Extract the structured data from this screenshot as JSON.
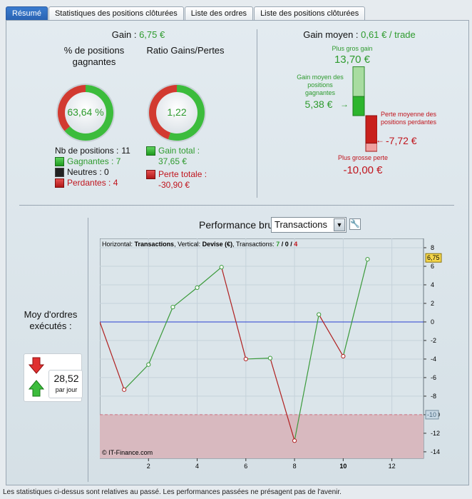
{
  "tabs": [
    {
      "label": "Résumé",
      "active": true
    },
    {
      "label": "Statistiques des positions clôturées",
      "active": false
    },
    {
      "label": "Liste des ordres",
      "active": false
    },
    {
      "label": "Liste des positions clôturées",
      "active": false
    }
  ],
  "summary": {
    "gain_label": "Gain :",
    "gain_value": "6,75 €",
    "winning_title": "% de positions gagnantes",
    "winning_pct_text": "63,64 %",
    "winning_fraction": 0.6364,
    "ratio_title": "Ratio Gains/Pertes",
    "ratio_text": "1,22",
    "ratio_gain_fraction": 0.55,
    "nb_positions_label": "Nb de positions :",
    "nb_positions_value": "11",
    "gagnantes_label": "Gagnantes : 7",
    "neutres_label": "Neutres : 0",
    "perdantes_label": "Perdantes : 4",
    "gain_total_label": "Gain total :",
    "gain_total_value": "37,65 €",
    "perte_totale_label": "Perte totale :",
    "perte_totale_value": "-30,90 €"
  },
  "gain_moyen": {
    "label": "Gain moyen :",
    "value": "0,61 € / trade",
    "plus_gros_gain_label": "Plus gros gain",
    "plus_gros_gain_value": "13,70 €",
    "gain_moyen_positions_label": "Gain moyen des positions gagnantes",
    "gain_moyen_positions_value": "5,38 €",
    "perte_moyenne_label": "Perte moyenne des positions perdantes",
    "perte_moyenne_value": "-7,72 €",
    "plus_grosse_perte_label": "Plus grosse perte",
    "plus_grosse_perte_value": "-10,00 €",
    "max_gain": 13.7,
    "avg_gain": 5.38,
    "avg_loss": -7.72,
    "max_loss": -10.0
  },
  "orders": {
    "title": "Moy d'ordres exécutés :",
    "value": "28,52",
    "unit": "par jour"
  },
  "performance": {
    "title": "Performance brute",
    "dropdown_value": "Transactions",
    "info_prefix": "Horizontal:",
    "info_h": "Transactions",
    "info_mid": ", Vertical:",
    "info_v": "Devise (€)",
    "info_tx": ", Transactions:",
    "info_win": "7",
    "info_sep1": " / ",
    "info_neutral": "0",
    "info_sep2": " / ",
    "info_loss": "4",
    "watermark": "© IT-Finance.com",
    "last_value_label": "6,75",
    "limit_label": "-10"
  },
  "footer": "Les statistiques ci-dessus sont relatives au passé. Les performances passées ne présagent pas de l'avenir.",
  "chart_data": {
    "type": "line",
    "x": [
      0,
      1,
      2,
      3,
      4,
      5,
      6,
      7,
      8,
      9,
      10,
      11
    ],
    "y": [
      0,
      -7.3,
      -4.6,
      1.6,
      3.7,
      5.9,
      -4.0,
      -3.9,
      -12.8,
      0.8,
      -3.7,
      6.75
    ],
    "xlim": [
      0,
      13.3
    ],
    "ylim": [
      -14.7,
      9.0
    ],
    "x_ticks": [
      2,
      4,
      6,
      8,
      10,
      12
    ],
    "y_ticks": [
      8,
      6,
      4,
      2,
      0,
      -2,
      -4,
      -6,
      -8,
      -10,
      -12,
      -14
    ],
    "loss_limit": -10,
    "grid": true,
    "colors": {
      "up": "#3a9a3a",
      "down": "#b02020",
      "zero": "#2a3fd0",
      "zone": "#d8b9bf"
    }
  }
}
